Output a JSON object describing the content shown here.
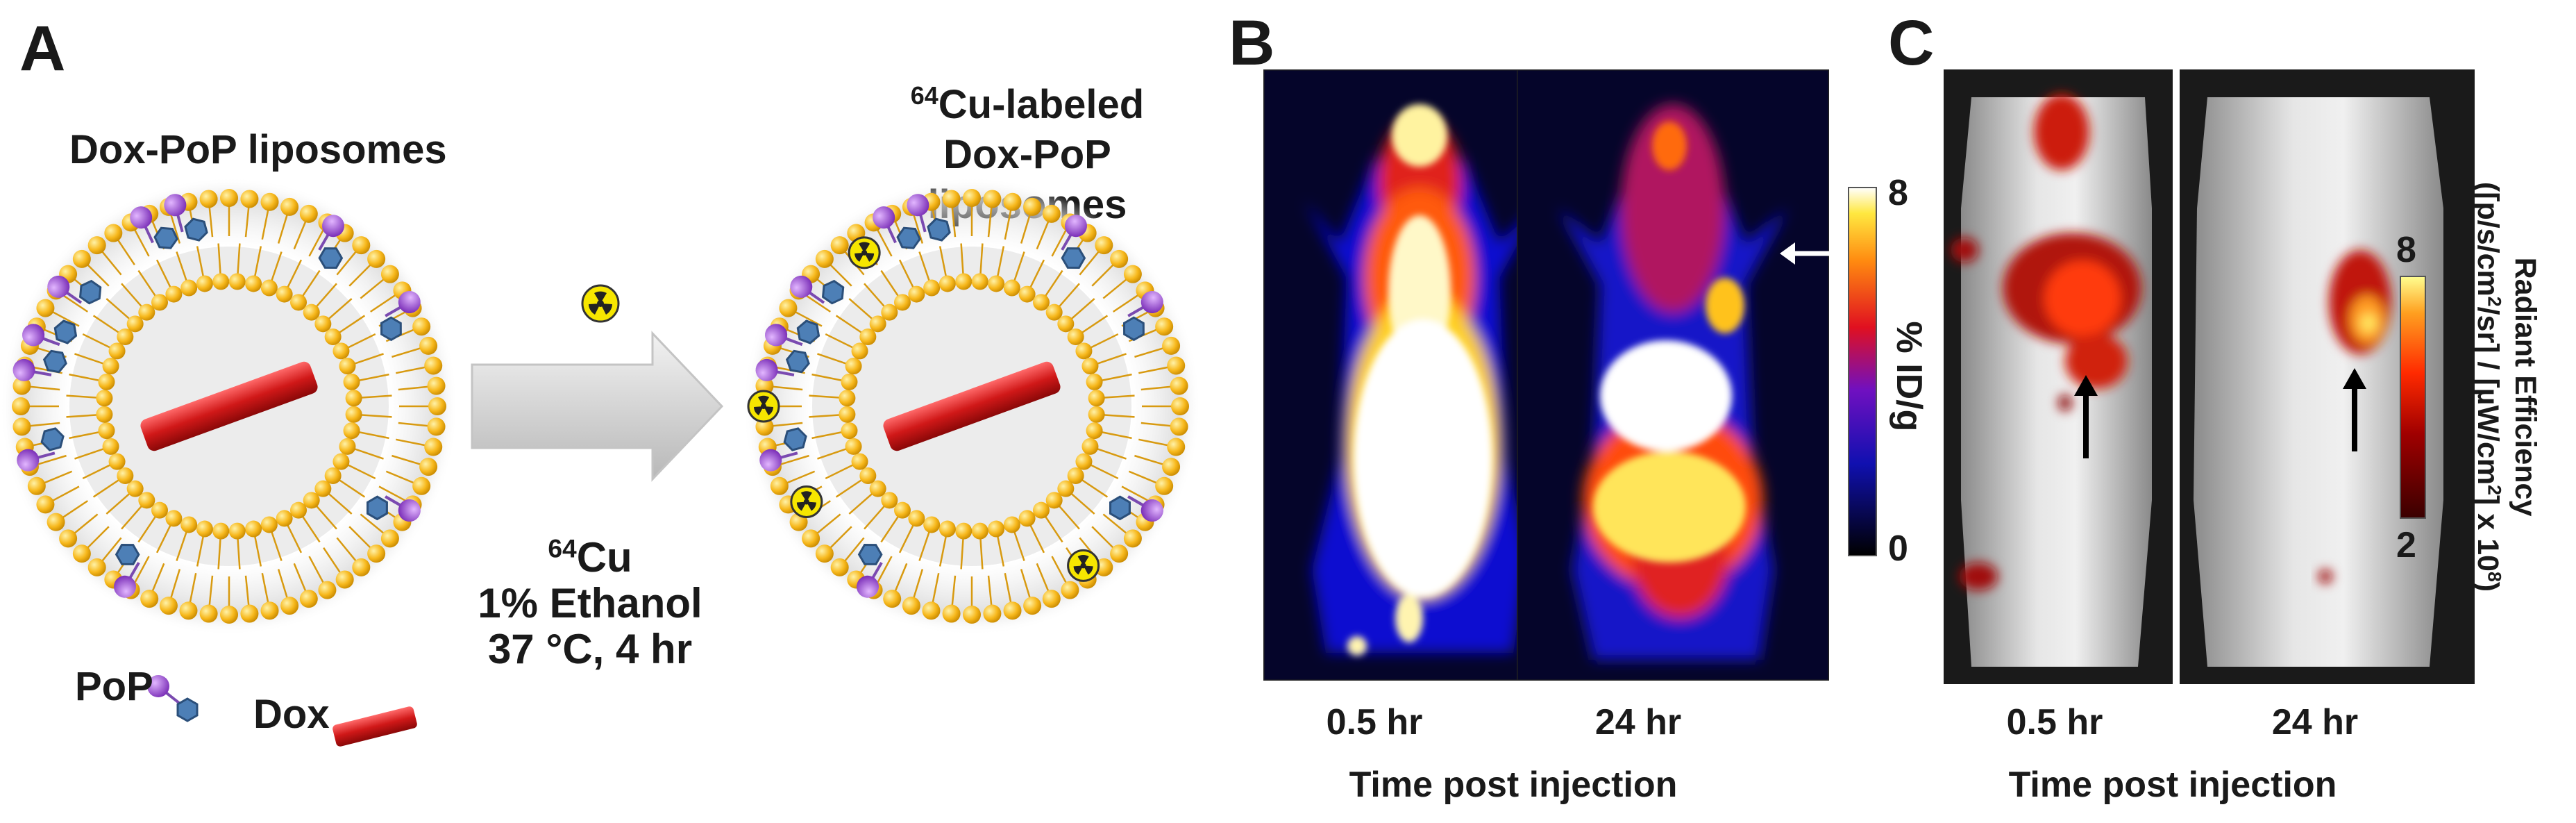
{
  "panel_a": {
    "label": "A",
    "left_title": "Dox-PoP liposomes",
    "right_title_sup": "64",
    "right_title_line1": "Cu-labeled",
    "right_title_line2": "Dox-PoP liposomes",
    "cond_sup": "64",
    "cond_line1": "Cu",
    "cond_line2": "1% Ethanol",
    "cond_line3": "37 °C, 4 hr",
    "legend_pop": "PoP",
    "legend_dox": "Dox",
    "colors": {
      "lipid_head": "#f7b81c",
      "pop_sphere": "#9b4fd1",
      "pop_hexagon": "#4d7fb6",
      "dox_rod": "#d01818",
      "radio_badge": "#f6e600"
    }
  },
  "panel_b": {
    "label": "B",
    "times": [
      "0.5 hr",
      "24 hr"
    ],
    "axis_title": "Time post injection",
    "colorbar_label": "% ID/g",
    "colorbar_max": "8",
    "colorbar_min": "0",
    "colormap": "black-blue-red-yellow-white"
  },
  "panel_c": {
    "label": "C",
    "times": [
      "0.5 hr",
      "24 hr"
    ],
    "axis_title": "Time post injection",
    "colorbar_max": "8",
    "colorbar_min": "2",
    "cb_line1": "Radiant Efficiency",
    "cb_line2_a": "([p/s/cm",
    "cb_line2_b": "2",
    "cb_line2_c": "/sr] / [µW/cm",
    "cb_line2_d": "2",
    "cb_line2_e": "] x 10",
    "cb_line2_f": "8",
    "cb_line2_g": ")",
    "colormap": "dark red-red-orange-yellow"
  }
}
